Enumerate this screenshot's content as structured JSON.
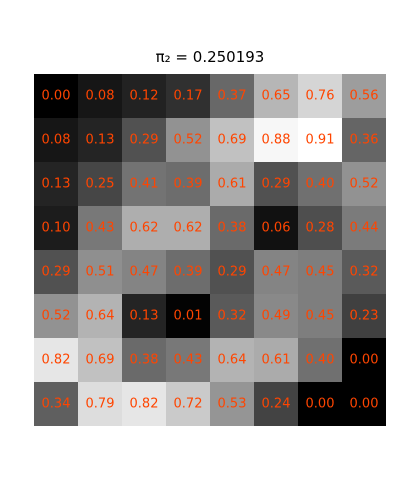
{
  "chart_data": {
    "type": "heatmap",
    "title": "π₂ = 0.250193",
    "colormap": "gray",
    "vmin": 0.0,
    "vmax": 0.91,
    "label_color": "#ff4500",
    "rows": 8,
    "cols": 8,
    "values": [
      [
        0.0,
        0.08,
        0.12,
        0.17,
        0.37,
        0.65,
        0.76,
        0.56
      ],
      [
        0.08,
        0.13,
        0.29,
        0.52,
        0.69,
        0.88,
        0.91,
        0.36
      ],
      [
        0.13,
        0.25,
        0.41,
        0.39,
        0.61,
        0.29,
        0.4,
        0.52
      ],
      [
        0.1,
        0.43,
        0.62,
        0.62,
        0.38,
        0.06,
        0.28,
        0.44
      ],
      [
        0.29,
        0.51,
        0.47,
        0.39,
        0.29,
        0.47,
        0.45,
        0.32
      ],
      [
        0.52,
        0.64,
        0.13,
        0.01,
        0.32,
        0.49,
        0.45,
        0.23
      ],
      [
        0.82,
        0.69,
        0.38,
        0.43,
        0.64,
        0.61,
        0.4,
        0.0
      ],
      [
        0.34,
        0.79,
        0.82,
        0.72,
        0.53,
        0.24,
        0.0,
        0.0
      ]
    ],
    "grid": false,
    "axes_visible": false
  }
}
